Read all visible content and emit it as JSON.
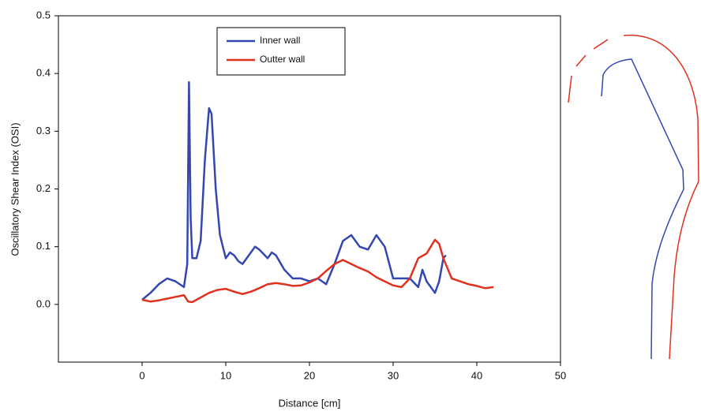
{
  "chart_data": {
    "type": "line",
    "xlabel": "Distance [cm]",
    "ylabel": "Oscillatory Shear Index (OSI)",
    "xlim": [
      -10,
      50
    ],
    "xticks": [
      0,
      10,
      20,
      30,
      40,
      50
    ],
    "ylim": [
      -0.1,
      0.5
    ],
    "yticks": [
      {
        "value": 0,
        "label": "0.0"
      },
      0.1,
      0.2,
      0.3,
      0.4,
      0.5
    ],
    "legend": "upper center",
    "series": [
      {
        "name": "Inner wall",
        "color": "#3447b0",
        "x": [
          0,
          1,
          2,
          3,
          4,
          5,
          5.4,
          5.6,
          5.8,
          6,
          6.5,
          7,
          7.5,
          8,
          8.3,
          8.8,
          9.3,
          10,
          10.5,
          11,
          11.5,
          12,
          13,
          13.5,
          14,
          15,
          15.5,
          16,
          17,
          18,
          19,
          20,
          21,
          22,
          23,
          24,
          25,
          26,
          27,
          28,
          29,
          30,
          31,
          32,
          33,
          33.5,
          34,
          35,
          35.5,
          36,
          36.3
        ],
        "values": [
          0.008,
          0.02,
          0.035,
          0.045,
          0.04,
          0.03,
          0.07,
          0.385,
          0.15,
          0.08,
          0.08,
          0.11,
          0.25,
          0.34,
          0.33,
          0.2,
          0.12,
          0.08,
          0.09,
          0.085,
          0.075,
          0.07,
          0.09,
          0.1,
          0.095,
          0.08,
          0.09,
          0.085,
          0.06,
          0.045,
          0.045,
          0.04,
          0.045,
          0.035,
          0.07,
          0.11,
          0.12,
          0.1,
          0.095,
          0.12,
          0.1,
          0.045,
          0.045,
          0.045,
          0.03,
          0.06,
          0.04,
          0.02,
          0.04,
          0.08,
          0.085
        ]
      },
      {
        "name": "Outter wall",
        "color": "#e0301e",
        "x": [
          0,
          1,
          2,
          3,
          4,
          5,
          5.5,
          6,
          7,
          8,
          9,
          10,
          11,
          12,
          13,
          14,
          15,
          16,
          17,
          18,
          19,
          20,
          21,
          22,
          23,
          24,
          25,
          26,
          27,
          28,
          29,
          30,
          31,
          32,
          33,
          34,
          35,
          35.5,
          36,
          37,
          38,
          39,
          40,
          41,
          42
        ],
        "values": [
          0.008,
          0.005,
          0.007,
          0.01,
          0.013,
          0.016,
          0.005,
          0.004,
          0.012,
          0.02,
          0.025,
          0.027,
          0.022,
          0.018,
          0.022,
          0.028,
          0.035,
          0.037,
          0.035,
          0.032,
          0.033,
          0.038,
          0.045,
          0.058,
          0.07,
          0.077,
          0.07,
          0.063,
          0.057,
          0.047,
          0.04,
          0.033,
          0.03,
          0.045,
          0.08,
          0.088,
          0.112,
          0.105,
          0.08,
          0.045,
          0.04,
          0.035,
          0.032,
          0.028,
          0.03
        ]
      }
    ]
  }
}
